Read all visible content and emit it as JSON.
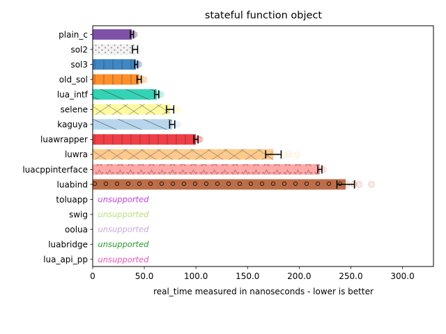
{
  "chart_data": {
    "type": "bar",
    "orientation": "horizontal",
    "title": "stateful function object",
    "xlabel": "real_time measured in nanoseconds - lower is better",
    "ylabel": "",
    "xlim": [
      0,
      330
    ],
    "xticks": [
      0,
      50,
      100,
      150,
      200,
      250,
      300
    ],
    "xtick_labels": [
      "0",
      "50.0",
      "100.0",
      "150.0",
      "200.0",
      "250.0",
      "300.0"
    ],
    "grid": false,
    "series": [
      {
        "name": "plain_c",
        "value": 38,
        "err": 1.5,
        "color": "#7f52a8",
        "hatch": "none",
        "scatter": [
          38,
          39,
          40,
          40.5
        ]
      },
      {
        "name": "sol2",
        "value": 41,
        "err": 2.5,
        "color": "#f2f2f2",
        "hatch": "dots",
        "scatter": [
          41,
          43,
          46,
          47
        ]
      },
      {
        "name": "sol3",
        "value": 42,
        "err": 1.5,
        "color": "#3f86c2",
        "hatch": "vlines",
        "scatter": [
          42,
          43,
          44,
          45
        ]
      },
      {
        "name": "old_sol",
        "value": 45,
        "err": 2,
        "color": "#ff8f2a",
        "hatch": "vlines",
        "scatter": [
          45,
          47,
          49,
          50
        ]
      },
      {
        "name": "lua_intf",
        "value": 62,
        "err": 2,
        "color": "#33d3b6",
        "hatch": "diag",
        "scatter": [
          62,
          63,
          65,
          66
        ]
      },
      {
        "name": "selene",
        "value": 75,
        "err": 3.5,
        "color": "#fffa9e",
        "hatch": "cross",
        "scatter": [
          75,
          79,
          82,
          84
        ]
      },
      {
        "name": "kaguya",
        "value": 77,
        "err": 2.5,
        "color": "#b8d6eb",
        "hatch": "diag",
        "scatter": [
          77,
          79,
          81,
          83
        ]
      },
      {
        "name": "luawrapper",
        "value": 100,
        "err": 2,
        "color": "#f03e46",
        "hatch": "vlines",
        "scatter": [
          100,
          102,
          103,
          104
        ]
      },
      {
        "name": "luwra",
        "value": 175,
        "err": 7.5,
        "color": "#ffca8a",
        "hatch": "cross",
        "scatter": [
          176,
          185,
          190,
          198
        ]
      },
      {
        "name": "luacppinterface",
        "value": 220,
        "err": 2,
        "color": "#ffa9a9",
        "hatch": "stars",
        "scatter": [
          220,
          222,
          223,
          224
        ]
      },
      {
        "name": "luabind",
        "value": 245,
        "err": 8.5,
        "color": "#bc6e48",
        "hatch": "circles",
        "scatter": [
          246,
          253,
          258,
          270
        ]
      },
      {
        "name": "toluapp",
        "value": null,
        "text": "unsupported",
        "color": "#bf3fd9"
      },
      {
        "name": "swig",
        "value": null,
        "text": "unsupported",
        "color": "#b7de7a"
      },
      {
        "name": "oolua",
        "value": null,
        "text": "unsupported",
        "color": "#c8a8d8"
      },
      {
        "name": "luabridge",
        "value": null,
        "text": "unsupported",
        "color": "#2a9a2a"
      },
      {
        "name": "lua_api_pp",
        "value": null,
        "text": "unsupported",
        "color": "#e955b8"
      }
    ]
  }
}
